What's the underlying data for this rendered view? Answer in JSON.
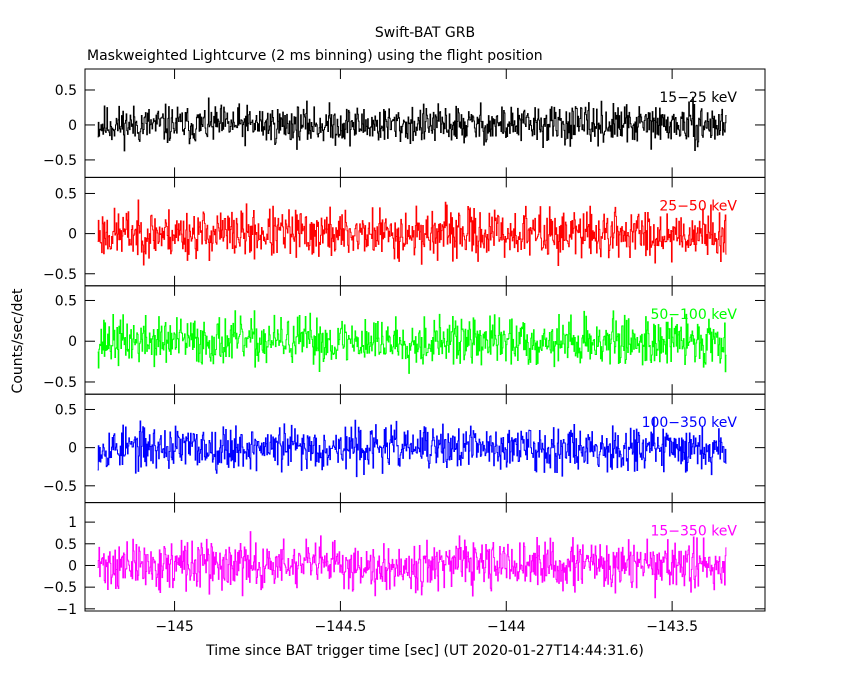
{
  "header": {
    "title": "Swift-BAT GRB",
    "subtitle": "Maskweighted Lightcurve (2 ms binning) using the flight position"
  },
  "chart_data": {
    "type": "line",
    "title": "Swift-BAT GRB",
    "subtitle": "Maskweighted Lightcurve (2 ms binning) using the flight position",
    "xlabel": "Time since BAT trigger time [sec] (UT 2020-01-27T14:44:31.6)",
    "ylabel": "Counts/sec/det",
    "xlim": [
      -145.27,
      -143.22
    ],
    "x_ticks": [
      -145,
      -144.5,
      -144,
      -143.5
    ],
    "x_tick_labels": [
      "−145",
      "−144.5",
      "−144",
      "−143.5"
    ],
    "binning_sec": 0.002,
    "x_start": -145.232,
    "x_end": -143.336,
    "grid": false,
    "legend": "in-panel label, upper right of each panel",
    "panels": [
      {
        "name": "15−25 keV",
        "color": "#000000",
        "ylim": [
          -0.75,
          0.8
        ],
        "y_ticks": [
          -0.5,
          0,
          0.5
        ],
        "y_tick_labels": [
          "−0.5",
          "0",
          "0.5"
        ],
        "noise_amplitude": 0.27,
        "seed": 11
      },
      {
        "name": "25−50 keV",
        "color": "#ff0000",
        "ylim": [
          -0.65,
          0.7
        ],
        "y_ticks": [
          -0.5,
          0,
          0.5
        ],
        "y_tick_labels": [
          "−0.5",
          "0",
          "0.5"
        ],
        "noise_amplitude": 0.3,
        "seed": 23
      },
      {
        "name": "50−100 keV",
        "color": "#00ff00",
        "ylim": [
          -0.65,
          0.68
        ],
        "y_ticks": [
          -0.5,
          0,
          0.5
        ],
        "y_tick_labels": [
          "−0.5",
          "0",
          "0.5"
        ],
        "noise_amplitude": 0.29,
        "seed": 37
      },
      {
        "name": "100−350 keV",
        "color": "#0000ff",
        "ylim": [
          -0.72,
          0.7
        ],
        "y_ticks": [
          -0.5,
          0,
          0.5
        ],
        "y_tick_labels": [
          "−0.5",
          "0",
          "0.5"
        ],
        "noise_amplitude": 0.28,
        "seed": 53
      },
      {
        "name": "15−350 keV",
        "color": "#ff00ff",
        "ylim": [
          -1.05,
          1.45
        ],
        "y_ticks": [
          -1,
          -0.5,
          0,
          0.5,
          1
        ],
        "y_tick_labels": [
          "−1",
          "−0.5",
          "0",
          "0.5",
          "1"
        ],
        "noise_amplitude": 0.55,
        "seed": 71
      }
    ]
  }
}
